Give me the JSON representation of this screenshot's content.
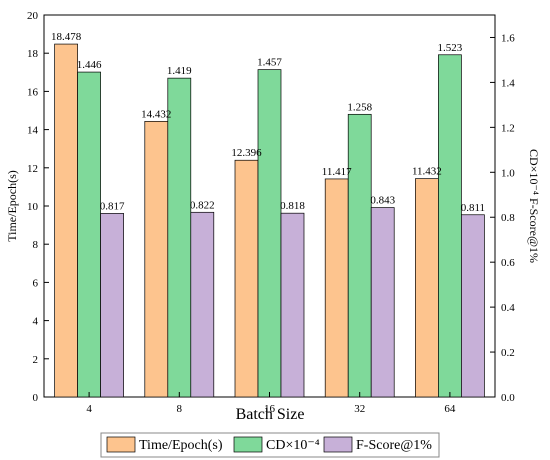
{
  "chart_data": {
    "type": "bar",
    "xlabel": "Batch Size",
    "ylabel_left": "Time/Epoch(s)",
    "ylabel_right": "CD×10⁻⁴ F-Score@1%",
    "ylim_left": [
      0,
      20
    ],
    "ylim_right": [
      0,
      1.7
    ],
    "yticks_left": [
      "0",
      "2",
      "4",
      "6",
      "8",
      "10",
      "12",
      "14",
      "16",
      "18",
      "20"
    ],
    "yticks_right": [
      "0.0",
      "0.2",
      "0.4",
      "0.6",
      "0.8",
      "1.0",
      "1.2",
      "1.4",
      "1.6"
    ],
    "categories": [
      "4",
      "8",
      "16",
      "32",
      "64"
    ],
    "grid": false,
    "legend_position": "bottom",
    "series": [
      {
        "name": "Time/Epoch(s)",
        "axis": "left",
        "color": "#FDC48E",
        "values": [
          18.478,
          14.432,
          12.396,
          11.417,
          11.432
        ],
        "labels": [
          "18.478",
          "14.432",
          "12.396",
          "11.417",
          "11.432"
        ]
      },
      {
        "name": "CD×10⁻⁴",
        "axis": "right",
        "color": "#7FD99A",
        "values": [
          1.446,
          1.419,
          1.457,
          1.258,
          1.523
        ],
        "labels": [
          "1.446",
          "1.419",
          "1.457",
          "1.258",
          "1.523"
        ]
      },
      {
        "name": "F-Score@1%",
        "axis": "right",
        "color": "#C7B0D8",
        "values": [
          0.817,
          0.822,
          0.818,
          0.843,
          0.811
        ],
        "labels": [
          "0.817",
          "0.822",
          "0.818",
          "0.843",
          "0.811"
        ]
      }
    ]
  }
}
